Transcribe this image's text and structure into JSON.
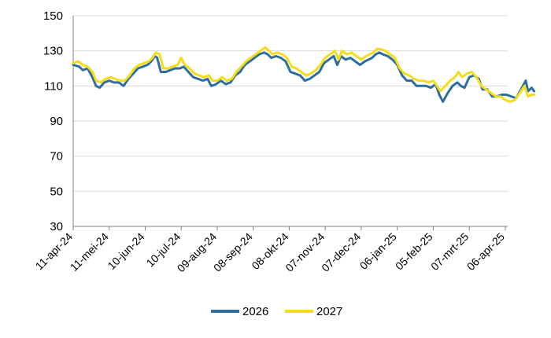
{
  "chart_data": {
    "type": "line",
    "title": "",
    "xlabel": "",
    "ylabel": "",
    "ylim": [
      30,
      150
    ],
    "yticks": [
      30,
      50,
      70,
      90,
      110,
      130,
      150
    ],
    "grid": "horizontal",
    "legend_position": "bottom",
    "x_start_date": "2024-04-11",
    "x_end_date": "2025-04-08",
    "x_ticks": [
      {
        "label": "11-apr-24",
        "date": "2024-04-11"
      },
      {
        "label": "11-mei-24",
        "date": "2024-05-11"
      },
      {
        "label": "10-jun-24",
        "date": "2024-06-10"
      },
      {
        "label": "10-jul-24",
        "date": "2024-07-10"
      },
      {
        "label": "09-aug-24",
        "date": "2024-08-09"
      },
      {
        "label": "08-sep-24",
        "date": "2024-09-08"
      },
      {
        "label": "08-okt-24",
        "date": "2024-10-08"
      },
      {
        "label": "07-nov-24",
        "date": "2024-11-07"
      },
      {
        "label": "07-dec-24",
        "date": "2024-12-07"
      },
      {
        "label": "06-jan-25",
        "date": "2025-01-06"
      },
      {
        "label": "05-feb-25",
        "date": "2025-02-05"
      },
      {
        "label": "07-mrt-25",
        "date": "2025-03-07"
      },
      {
        "label": "06-apr-25",
        "date": "2025-04-06"
      }
    ],
    "series": [
      {
        "name": "2026",
        "color": "#2E6E9E",
        "points": [
          [
            0,
            122
          ],
          [
            5,
            121
          ],
          [
            8,
            119
          ],
          [
            12,
            120
          ],
          [
            16,
            115
          ],
          [
            19,
            110
          ],
          [
            22,
            109
          ],
          [
            26,
            112
          ],
          [
            30,
            113
          ],
          [
            34,
            112
          ],
          [
            38,
            112
          ],
          [
            42,
            110
          ],
          [
            46,
            114
          ],
          [
            50,
            117
          ],
          [
            54,
            120
          ],
          [
            58,
            121
          ],
          [
            62,
            122
          ],
          [
            65,
            124
          ],
          [
            68,
            127
          ],
          [
            70,
            126
          ],
          [
            73,
            118
          ],
          [
            77,
            118
          ],
          [
            81,
            119
          ],
          [
            85,
            120
          ],
          [
            89,
            120
          ],
          [
            92,
            121
          ],
          [
            96,
            118
          ],
          [
            100,
            115
          ],
          [
            104,
            114
          ],
          [
            108,
            113
          ],
          [
            112,
            114
          ],
          [
            115,
            110
          ],
          [
            119,
            111
          ],
          [
            123,
            113
          ],
          [
            127,
            111
          ],
          [
            131,
            112
          ],
          [
            135,
            116
          ],
          [
            139,
            118
          ],
          [
            143,
            122
          ],
          [
            147,
            124
          ],
          [
            151,
            126
          ],
          [
            155,
            128
          ],
          [
            159,
            129
          ],
          [
            162,
            128
          ],
          [
            165,
            126
          ],
          [
            169,
            127
          ],
          [
            173,
            126
          ],
          [
            177,
            124
          ],
          [
            181,
            118
          ],
          [
            185,
            117
          ],
          [
            189,
            116
          ],
          [
            193,
            113
          ],
          [
            197,
            114
          ],
          [
            201,
            116
          ],
          [
            205,
            118
          ],
          [
            209,
            123
          ],
          [
            213,
            125
          ],
          [
            217,
            127
          ],
          [
            220,
            122
          ],
          [
            223,
            127
          ],
          [
            227,
            125
          ],
          [
            231,
            126
          ],
          [
            235,
            124
          ],
          [
            239,
            122
          ],
          [
            243,
            124
          ],
          [
            246,
            125
          ],
          [
            249,
            126
          ],
          [
            252,
            128
          ],
          [
            255,
            129
          ],
          [
            258,
            128
          ],
          [
            262,
            127
          ],
          [
            266,
            125
          ],
          [
            270,
            122
          ],
          [
            274,
            116
          ],
          [
            278,
            113
          ],
          [
            282,
            113
          ],
          [
            286,
            110
          ],
          [
            290,
            110
          ],
          [
            294,
            110
          ],
          [
            298,
            109
          ],
          [
            302,
            111
          ],
          [
            305,
            105
          ],
          [
            308,
            101
          ],
          [
            312,
            106
          ],
          [
            316,
            110
          ],
          [
            320,
            112
          ],
          [
            323,
            110
          ],
          [
            326,
            109
          ],
          [
            330,
            115
          ],
          [
            334,
            116
          ],
          [
            338,
            114
          ],
          [
            341,
            108
          ],
          [
            345,
            108
          ],
          [
            349,
            104
          ],
          [
            353,
            104
          ],
          [
            357,
            105
          ],
          [
            361,
            105
          ],
          [
            365,
            104
          ],
          [
            369,
            103
          ],
          [
            373,
            108
          ],
          [
            377,
            113
          ],
          [
            379,
            107
          ],
          [
            382,
            109
          ],
          [
            384,
            107
          ]
        ]
      },
      {
        "name": "2027",
        "color": "#F5DC1A",
        "points": [
          [
            0,
            123
          ],
          [
            4,
            124
          ],
          [
            8,
            122
          ],
          [
            12,
            121
          ],
          [
            16,
            118
          ],
          [
            19,
            113
          ],
          [
            23,
            112
          ],
          [
            27,
            114
          ],
          [
            31,
            115
          ],
          [
            35,
            114
          ],
          [
            39,
            113
          ],
          [
            43,
            113
          ],
          [
            47,
            116
          ],
          [
            51,
            120
          ],
          [
            55,
            122
          ],
          [
            59,
            123
          ],
          [
            63,
            124
          ],
          [
            66,
            126
          ],
          [
            69,
            129
          ],
          [
            72,
            128
          ],
          [
            75,
            120
          ],
          [
            79,
            120
          ],
          [
            83,
            121
          ],
          [
            87,
            122
          ],
          [
            90,
            126
          ],
          [
            93,
            122
          ],
          [
            97,
            120
          ],
          [
            101,
            117
          ],
          [
            105,
            116
          ],
          [
            109,
            115
          ],
          [
            113,
            116
          ],
          [
            116,
            113
          ],
          [
            120,
            113
          ],
          [
            124,
            115
          ],
          [
            128,
            113
          ],
          [
            132,
            114
          ],
          [
            136,
            118
          ],
          [
            140,
            121
          ],
          [
            144,
            124
          ],
          [
            148,
            126
          ],
          [
            152,
            128
          ],
          [
            156,
            130
          ],
          [
            160,
            132
          ],
          [
            163,
            130
          ],
          [
            166,
            128
          ],
          [
            170,
            129
          ],
          [
            174,
            128
          ],
          [
            178,
            126
          ],
          [
            182,
            121
          ],
          [
            186,
            120
          ],
          [
            190,
            118
          ],
          [
            194,
            116
          ],
          [
            198,
            117
          ],
          [
            202,
            119
          ],
          [
            206,
            122
          ],
          [
            210,
            126
          ],
          [
            214,
            128
          ],
          [
            218,
            130
          ],
          [
            221,
            125
          ],
          [
            224,
            130
          ],
          [
            228,
            128
          ],
          [
            232,
            129
          ],
          [
            236,
            127
          ],
          [
            240,
            125
          ],
          [
            244,
            127
          ],
          [
            247,
            128
          ],
          [
            250,
            129
          ],
          [
            253,
            131
          ],
          [
            256,
            131
          ],
          [
            260,
            130
          ],
          [
            264,
            128
          ],
          [
            268,
            126
          ],
          [
            272,
            120
          ],
          [
            276,
            117
          ],
          [
            280,
            116
          ],
          [
            284,
            114
          ],
          [
            288,
            113
          ],
          [
            292,
            113
          ],
          [
            296,
            112
          ],
          [
            300,
            113
          ],
          [
            303,
            110
          ],
          [
            306,
            107
          ],
          [
            310,
            110
          ],
          [
            314,
            113
          ],
          [
            318,
            115
          ],
          [
            321,
            118
          ],
          [
            324,
            115
          ],
          [
            328,
            117
          ],
          [
            332,
            118
          ],
          [
            336,
            115
          ],
          [
            340,
            110
          ],
          [
            344,
            108
          ],
          [
            348,
            106
          ],
          [
            352,
            104
          ],
          [
            356,
            104
          ],
          [
            360,
            102
          ],
          [
            364,
            101
          ],
          [
            368,
            102
          ],
          [
            372,
            106
          ],
          [
            376,
            110
          ],
          [
            379,
            104
          ],
          [
            382,
            105
          ],
          [
            384,
            105
          ]
        ]
      }
    ]
  }
}
